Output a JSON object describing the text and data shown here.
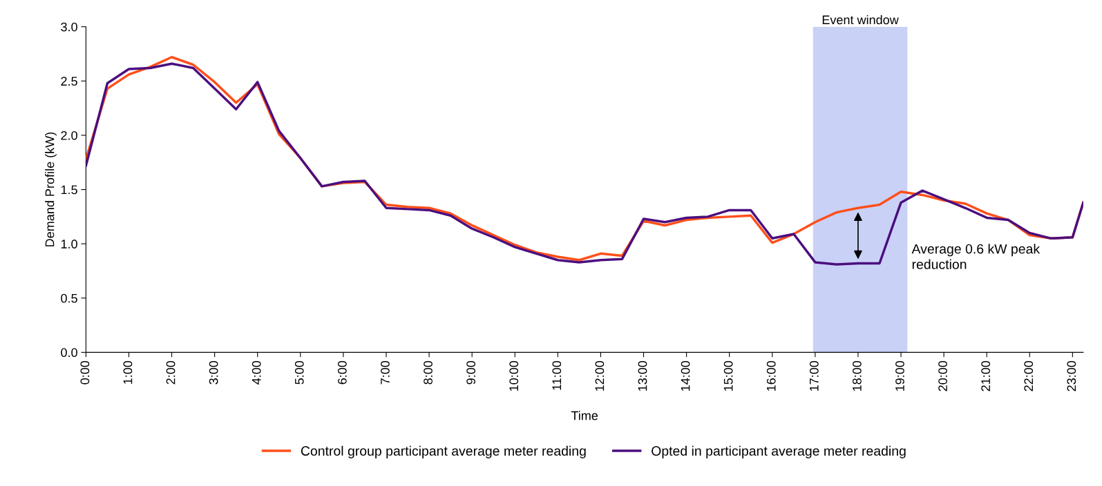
{
  "chart_data": {
    "type": "line",
    "xlabel": "Time",
    "ylabel": "Demand Profile (kW)",
    "x": [
      0,
      0.5,
      1,
      1.5,
      2,
      2.5,
      3,
      3.5,
      4,
      4.5,
      5,
      5.5,
      6,
      6.5,
      7,
      7.5,
      8,
      8.5,
      9,
      9.5,
      10,
      10.5,
      11,
      11.5,
      12,
      12.5,
      13,
      13.5,
      14,
      14.5,
      15,
      15.5,
      16,
      16.5,
      17,
      17.5,
      18,
      18.5,
      19,
      19.5,
      20,
      20.5,
      21,
      21.5,
      22,
      22.5,
      23,
      23.25
    ],
    "series": [
      {
        "name": "Control group participant average meter reading",
        "color": "#ff4f1a",
        "values": [
          1.78,
          2.43,
          2.56,
          2.63,
          2.72,
          2.65,
          2.49,
          2.3,
          2.47,
          2.01,
          1.79,
          1.53,
          1.56,
          1.57,
          1.36,
          1.34,
          1.33,
          1.28,
          1.17,
          1.08,
          0.99,
          0.92,
          0.88,
          0.85,
          0.91,
          0.89,
          1.21,
          1.17,
          1.22,
          1.24,
          1.25,
          1.26,
          1.01,
          1.09,
          1.2,
          1.29,
          1.33,
          1.36,
          1.48,
          1.45,
          1.4,
          1.37,
          1.28,
          1.22,
          1.08,
          1.05,
          1.06,
          1.38
        ]
      },
      {
        "name": "Opted in participant average meter reading",
        "color": "#4b0f7f",
        "values": [
          1.72,
          2.48,
          2.61,
          2.62,
          2.66,
          2.62,
          2.43,
          2.24,
          2.49,
          2.04,
          1.79,
          1.53,
          1.57,
          1.58,
          1.33,
          1.32,
          1.31,
          1.26,
          1.14,
          1.06,
          0.97,
          0.91,
          0.85,
          0.83,
          0.85,
          0.86,
          1.23,
          1.2,
          1.24,
          1.25,
          1.31,
          1.31,
          1.05,
          1.09,
          0.83,
          0.81,
          0.82,
          0.82,
          1.38,
          1.49,
          1.41,
          1.33,
          1.24,
          1.22,
          1.1,
          1.05,
          1.06,
          1.38
        ]
      }
    ],
    "xlim": [
      0,
      23.25
    ],
    "xticks": [
      {
        "value": 0,
        "label": "0:00"
      },
      {
        "value": 1,
        "label": "1:00"
      },
      {
        "value": 2,
        "label": "2:00"
      },
      {
        "value": 3,
        "label": "3:00"
      },
      {
        "value": 4,
        "label": "4:00"
      },
      {
        "value": 5,
        "label": "5:00"
      },
      {
        "value": 6,
        "label": "6:00"
      },
      {
        "value": 7,
        "label": "7:00"
      },
      {
        "value": 8,
        "label": "8:00"
      },
      {
        "value": 9,
        "label": "9:00"
      },
      {
        "value": 10,
        "label": "10:00"
      },
      {
        "value": 11,
        "label": "11:00"
      },
      {
        "value": 12,
        "label": "12:00"
      },
      {
        "value": 13,
        "label": "13:00"
      },
      {
        "value": 14,
        "label": "14:00"
      },
      {
        "value": 15,
        "label": "15:00"
      },
      {
        "value": 16,
        "label": "16:00"
      },
      {
        "value": 17,
        "label": "17:00"
      },
      {
        "value": 18,
        "label": "18:00"
      },
      {
        "value": 19,
        "label": "19:00"
      },
      {
        "value": 20,
        "label": "20:00"
      },
      {
        "value": 21,
        "label": "21:00"
      },
      {
        "value": 22,
        "label": "22:00"
      },
      {
        "value": 23,
        "label": "23:00"
      }
    ],
    "ylim": [
      0,
      3
    ],
    "yticks": [
      {
        "value": 0,
        "label": "0.0"
      },
      {
        "value": 0.5,
        "label": "0.5"
      },
      {
        "value": 1,
        "label": "1.0"
      },
      {
        "value": 1.5,
        "label": "1.5"
      },
      {
        "value": 2,
        "label": "2.0"
      },
      {
        "value": 2.5,
        "label": "2.5"
      },
      {
        "value": 3,
        "label": "3.0"
      }
    ],
    "bands": [
      {
        "axis": "x",
        "from": 16.95,
        "to": 19.15,
        "label": "Event window",
        "color": "#c9d1f7"
      }
    ],
    "annotations": [
      "Average 0.6 kW peak reduction"
    ],
    "grid": false,
    "legend": "bottom",
    "marker": "none",
    "line_style": "solid"
  }
}
